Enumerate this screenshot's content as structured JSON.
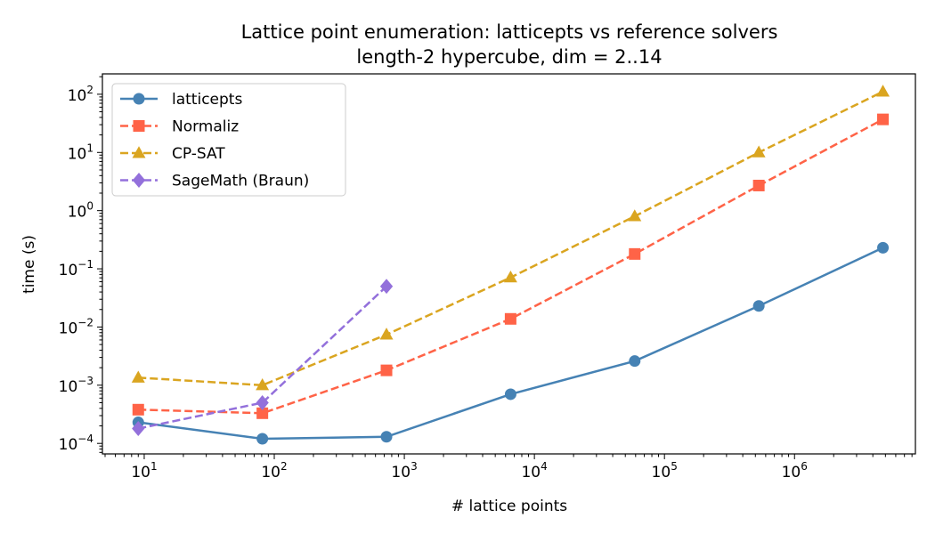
{
  "chart_data": {
    "type": "line",
    "title": "Lattice point enumeration: latticepts vs reference solvers",
    "subtitle": "length-2 hypercube, dim = 2..14",
    "xlabel": "# lattice points",
    "ylabel": "time (s)",
    "xscale": "log",
    "yscale": "log",
    "xlim": [
      4.77,
      8500000
    ],
    "ylim": [
      6.6e-05,
      224
    ],
    "xticks": [
      {
        "base": "10",
        "exp": "1"
      },
      {
        "base": "10",
        "exp": "2"
      },
      {
        "base": "10",
        "exp": "3"
      },
      {
        "base": "10",
        "exp": "4"
      },
      {
        "base": "10",
        "exp": "5"
      },
      {
        "base": "10",
        "exp": "6"
      }
    ],
    "yticks": [
      {
        "base": "10",
        "exp": "−4"
      },
      {
        "base": "10",
        "exp": "−3"
      },
      {
        "base": "10",
        "exp": "−2"
      },
      {
        "base": "10",
        "exp": "−1"
      },
      {
        "base": "10",
        "exp": "0"
      },
      {
        "base": "10",
        "exp": "1"
      },
      {
        "base": "10",
        "exp": "2"
      }
    ],
    "grid": false,
    "legend_position": "upper-left",
    "series": [
      {
        "name": "latticepts",
        "color": "#4682b4",
        "marker": "circle",
        "linestyle": "solid",
        "x": [
          9,
          81,
          729,
          6561,
          59049,
          531441,
          4782969
        ],
        "y": [
          0.00023,
          0.00012,
          0.00013,
          0.0007,
          0.0026,
          0.023,
          0.23
        ]
      },
      {
        "name": "Normaliz",
        "color": "#ff6347",
        "marker": "square",
        "linestyle": "dashed",
        "x": [
          9,
          81,
          729,
          6561,
          59049,
          531441,
          4782969
        ],
        "y": [
          0.00038,
          0.00033,
          0.0018,
          0.0138,
          0.18,
          2.7,
          37
        ]
      },
      {
        "name": "CP-SAT",
        "color": "#daa520",
        "marker": "triangle",
        "linestyle": "dashed",
        "x": [
          9,
          81,
          729,
          6561,
          59049,
          531441,
          4782969
        ],
        "y": [
          0.00135,
          0.001,
          0.0074,
          0.071,
          0.8,
          10,
          111
        ]
      },
      {
        "name": "SageMath (Braun)",
        "color": "#9370db",
        "marker": "diamond",
        "linestyle": "dashed",
        "x": [
          9,
          81,
          729
        ],
        "y": [
          0.00018,
          0.0005,
          0.05
        ]
      }
    ]
  }
}
